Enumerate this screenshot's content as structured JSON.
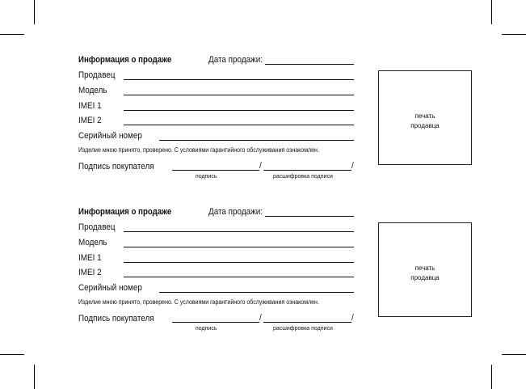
{
  "forms": [
    {
      "title": "Информация о продаже",
      "sale_date_label": "Дата продажи:",
      "fields": [
        "Продавец",
        "Модель",
        "IMEI 1",
        "IMEI 2",
        "Серийный номер"
      ],
      "statement": "Изделие мною принято, проверено. С условиями гарантийного обслуживания ознакомлен.",
      "signature_label": "Подпись покупателя",
      "slash": "/",
      "signature_hint": "подпись",
      "decoding_hint": "расшифровка подписи",
      "stamp_line1": "печать",
      "stamp_line2": "продавца"
    },
    {
      "title": "Информация о продаже",
      "sale_date_label": "Дата продажи:",
      "fields": [
        "Продавец",
        "Модель",
        "IMEI 1",
        "IMEI 2",
        "Серийный номер"
      ],
      "statement": "Изделие мною принято, проверено. С условиями гарантийного обслуживания ознакомлен.",
      "signature_label": "Подпись покупателя",
      "slash": "/",
      "signature_hint": "подпись",
      "decoding_hint": "расшифровка подписи",
      "stamp_line1": "печать",
      "stamp_line2": "продавца"
    }
  ]
}
